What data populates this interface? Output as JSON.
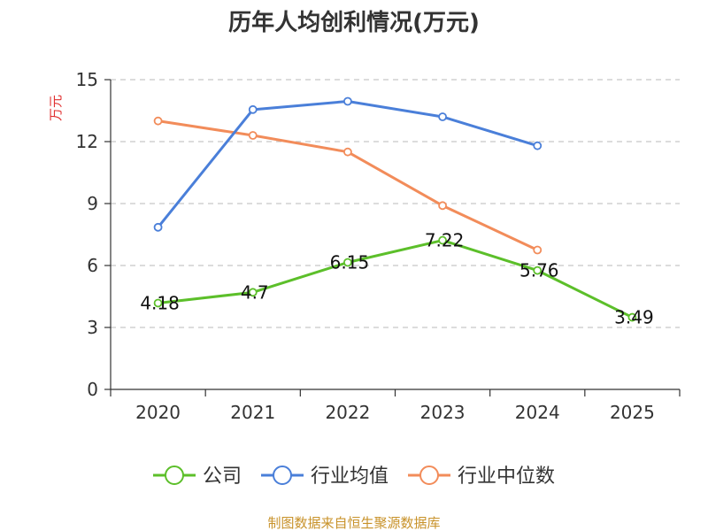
{
  "chart_data": {
    "type": "line",
    "title": "历年人均创利情况(万元)",
    "xlabel": "",
    "ylabel": "万元",
    "categories": [
      "2020",
      "2021",
      "2022",
      "2023",
      "2024",
      "2025"
    ],
    "ylim": [
      0,
      15
    ],
    "yticks": [
      0,
      3,
      6,
      9,
      12,
      15
    ],
    "grid": true,
    "legend_position": "bottom",
    "series": [
      {
        "name": "公司",
        "color": "#5cbf2a",
        "values": [
          4.18,
          4.7,
          6.15,
          7.22,
          5.76,
          3.49
        ],
        "labels": [
          "4.18",
          "4.7",
          "6.15",
          "7.22",
          "5.76",
          "3.49"
        ],
        "show_labels": true
      },
      {
        "name": "行业均值",
        "color": "#4a7fd9",
        "values": [
          7.85,
          13.55,
          13.95,
          13.2,
          11.8,
          null
        ],
        "show_labels": false
      },
      {
        "name": "行业中位数",
        "color": "#f28c5a",
        "values": [
          13.0,
          12.3,
          11.5,
          8.9,
          6.75,
          null
        ],
        "show_labels": false
      }
    ],
    "source": "制图数据来自恒生聚源数据库",
    "ylabel_color": "#e03030",
    "source_color": "#c8922a"
  }
}
